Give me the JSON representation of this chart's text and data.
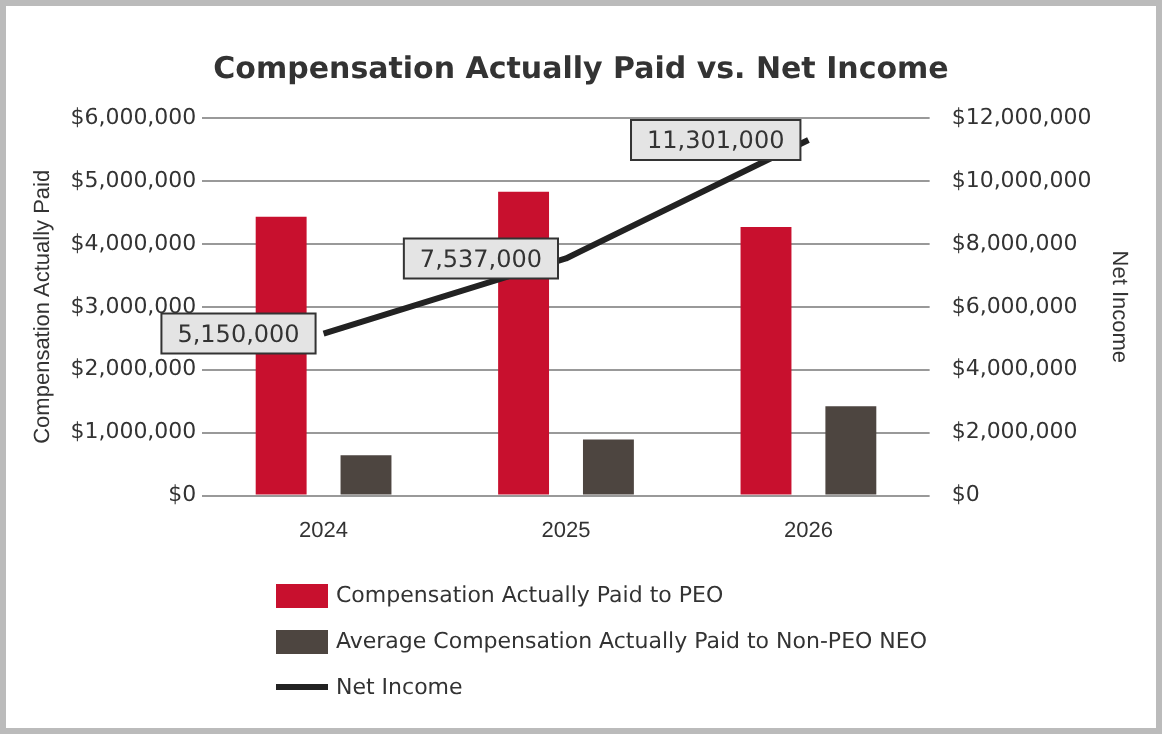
{
  "chart_data": {
    "type": "bar",
    "title": "Compensation Actually Paid vs. Net Income",
    "ylabel": "Compensation Actually Paid",
    "y2label": "Net Income",
    "categories": [
      "2024",
      "2025",
      "2026"
    ],
    "series": [
      {
        "name": "Compensation Actually Paid to PEO",
        "color": "#c8102e",
        "values": [
          4430000,
          4830000,
          4270000
        ]
      },
      {
        "name": "Average Compensation Actually Paid to Non-PEO NEO",
        "color": "#4d4540",
        "values": [
          640000,
          890000,
          1420000
        ]
      },
      {
        "name": "Net Income",
        "type": "line",
        "axis": "y2",
        "color": "#222222",
        "values": [
          5150000,
          7537000,
          11301000
        ],
        "value_labels": [
          "5,150,000",
          "7,537,000",
          "11,301,000"
        ]
      }
    ],
    "ylim": [
      0,
      6000000
    ],
    "yticks": [
      {
        "value": 0,
        "label": "$0"
      },
      {
        "value": 1000000,
        "label": "$1,000,000"
      },
      {
        "value": 2000000,
        "label": "$2,000,000"
      },
      {
        "value": 3000000,
        "label": "$3,000,000"
      },
      {
        "value": 4000000,
        "label": "$4,000,000"
      },
      {
        "value": 5000000,
        "label": "$5,000,000"
      },
      {
        "value": 6000000,
        "label": "$6,000,000"
      }
    ],
    "y2lim": [
      0,
      12000000
    ],
    "y2ticks": [
      {
        "value": 0,
        "label": "$0"
      },
      {
        "value": 2000000,
        "label": "$2,000,000"
      },
      {
        "value": 4000000,
        "label": "$4,000,000"
      },
      {
        "value": 6000000,
        "label": "$6,000,000"
      },
      {
        "value": 8000000,
        "label": "$8,000,000"
      },
      {
        "value": 10000000,
        "label": "$10,000,000"
      },
      {
        "value": 12000000,
        "label": "$12,000,000"
      }
    ],
    "grid": "y",
    "legend": "bottom",
    "line_style": "solid"
  }
}
